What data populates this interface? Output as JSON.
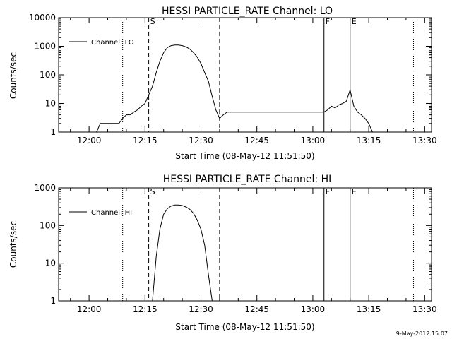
{
  "footer": {
    "timestamp": "9-May-2012 15:07"
  },
  "chart_data": [
    {
      "type": "line",
      "title": "HESSI PARTICLE_RATE Channel: LO",
      "xlabel": "Start Time (08-May-12 11:51:50)",
      "ylabel": "Counts/sec",
      "xlim": [
        "11:51:50",
        "13:31:50"
      ],
      "x_ticks": [
        "12:00",
        "12:15",
        "12:30",
        "12:45",
        "13:00",
        "13:15",
        "13:30"
      ],
      "yscale": "log",
      "ylim": [
        1,
        10000
      ],
      "y_ticks": [
        "1",
        "10",
        "100",
        "1000",
        "10000"
      ],
      "legend": {
        "label": "Channel: LO",
        "position": "top-left"
      },
      "grid": false,
      "series": [
        {
          "name": "Channel: LO",
          "x": [
            "12:00",
            "12:01",
            "12:02",
            "12:03",
            "12:04",
            "12:05",
            "12:06",
            "12:07",
            "12:08",
            "12:09",
            "12:10",
            "12:11",
            "12:12",
            "12:13",
            "12:14",
            "12:15",
            "12:16",
            "12:17",
            "12:18",
            "12:19",
            "12:20",
            "12:21",
            "12:22",
            "12:23",
            "12:24",
            "12:25",
            "12:26",
            "12:27",
            "12:28",
            "12:29",
            "12:30",
            "12:31",
            "12:32",
            "12:33",
            "12:34",
            "12:35",
            "12:36",
            "12:37",
            "12:38",
            "12:39",
            "12:40",
            "12:42",
            "12:44",
            "12:46",
            "12:48",
            "12:50",
            "12:52",
            "12:54",
            "12:56",
            "12:58",
            "13:00",
            "13:02",
            "13:03",
            "13:04",
            "13:05",
            "13:06",
            "13:07",
            "13:08",
            "13:09",
            "13:10",
            "13:11",
            "13:12",
            "13:13",
            "13:14",
            "13:15",
            "13:16"
          ],
          "values": [
            1,
            1,
            1,
            2,
            2,
            2,
            2,
            2,
            2,
            3,
            4,
            4,
            5,
            6,
            8,
            10,
            20,
            40,
            120,
            300,
            600,
            900,
            1050,
            1100,
            1100,
            1050,
            950,
            800,
            600,
            420,
            250,
            120,
            60,
            18,
            6,
            3,
            4,
            5,
            5,
            5,
            5,
            5,
            5,
            5,
            5,
            5,
            5,
            5,
            5,
            5,
            5,
            5,
            5,
            6,
            8,
            7,
            9,
            10,
            12,
            30,
            8,
            5,
            4,
            3,
            2,
            1
          ]
        }
      ],
      "vertical_markers": [
        {
          "time": "12:09",
          "style": "dotted",
          "label": ""
        },
        {
          "time": "12:16",
          "style": "dashed",
          "label": "S"
        },
        {
          "time": "12:35",
          "style": "dashed",
          "label": ""
        },
        {
          "time": "13:03",
          "style": "solid",
          "label": "F"
        },
        {
          "time": "13:10",
          "style": "solid",
          "label": "E"
        },
        {
          "time": "13:27",
          "style": "dotted",
          "label": ""
        }
      ]
    },
    {
      "type": "line",
      "title": "HESSI PARTICLE_RATE Channel: HI",
      "xlabel": "Start Time (08-May-12 11:51:50)",
      "ylabel": "Counts/sec",
      "xlim": [
        "11:51:50",
        "13:31:50"
      ],
      "x_ticks": [
        "12:00",
        "12:15",
        "12:30",
        "12:45",
        "13:00",
        "13:15",
        "13:30"
      ],
      "yscale": "log",
      "ylim": [
        1,
        1000
      ],
      "y_ticks": [
        "1",
        "10",
        "100",
        "1000"
      ],
      "legend": {
        "label": "Channel: HI",
        "position": "top-left"
      },
      "grid": false,
      "series": [
        {
          "name": "Channel: HI",
          "x": [
            "12:17",
            "12:18",
            "12:19",
            "12:20",
            "12:21",
            "12:22",
            "12:23",
            "12:24",
            "12:25",
            "12:26",
            "12:27",
            "12:28",
            "12:29",
            "12:30",
            "12:31",
            "12:32",
            "12:33"
          ],
          "values": [
            1,
            15,
            80,
            200,
            280,
            330,
            350,
            350,
            340,
            310,
            270,
            210,
            140,
            80,
            30,
            5,
            1
          ]
        }
      ],
      "vertical_markers": [
        {
          "time": "12:09",
          "style": "dotted",
          "label": ""
        },
        {
          "time": "12:16",
          "style": "dashed",
          "label": "S"
        },
        {
          "time": "12:35",
          "style": "dashed",
          "label": ""
        },
        {
          "time": "13:03",
          "style": "solid",
          "label": "F"
        },
        {
          "time": "13:10",
          "style": "solid",
          "label": "E"
        },
        {
          "time": "13:27",
          "style": "dotted",
          "label": ""
        }
      ]
    }
  ]
}
